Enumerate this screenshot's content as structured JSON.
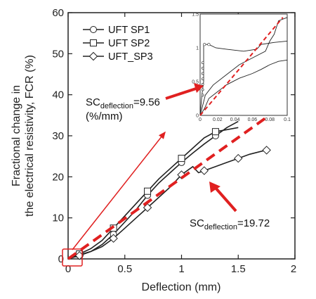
{
  "chart_data": {
    "type": "line",
    "xlabel": "Deflection  (mm)",
    "ylabel_line1": "Fractional change in",
    "ylabel_line2": "the electrical resistivity, FCR (%)",
    "xlim": [
      0,
      2
    ],
    "ylim": [
      0,
      60
    ],
    "x_ticks": [
      "0",
      "0.5",
      "1",
      "1.5",
      "2"
    ],
    "x_tick_values": [
      0,
      0.5,
      1,
      1.5,
      2
    ],
    "y_ticks": [
      "0",
      "10",
      "20",
      "30",
      "40",
      "50",
      "60"
    ],
    "y_tick_values": [
      0,
      10,
      20,
      30,
      40,
      50,
      60
    ],
    "legend_position": "top-left",
    "series": [
      {
        "name": "UFT  SP1",
        "marker": "circle",
        "x": [
          0,
          0.1,
          0.2,
          0.3,
          0.4,
          0.5,
          0.6,
          0.7,
          0.8,
          0.9,
          1.0,
          1.1,
          1.2,
          1.3,
          1.4,
          1.5
        ],
        "y": [
          0,
          1.0,
          1.8,
          3.5,
          6.0,
          9.0,
          12.0,
          15.5,
          18.5,
          21.0,
          23.5,
          25.8,
          28.0,
          30.0,
          32.0,
          33.5
        ]
      },
      {
        "name": "UFT  SP2",
        "marker": "square",
        "x": [
          0,
          0.1,
          0.2,
          0.3,
          0.4,
          0.5,
          0.6,
          0.7,
          0.8,
          0.9,
          1.0,
          1.1,
          1.2,
          1.3,
          1.4,
          1.5
        ],
        "y": [
          0,
          1.2,
          2.5,
          4.5,
          7.5,
          10.5,
          13.5,
          16.5,
          19.5,
          22.0,
          24.5,
          27.0,
          29.5,
          31.0,
          31.5,
          32.0
        ]
      },
      {
        "name": "UFT_SP3",
        "marker": "diamond",
        "x": [
          0,
          0.1,
          0.2,
          0.3,
          0.4,
          0.5,
          0.6,
          0.7,
          0.8,
          0.9,
          1.0,
          1.1,
          1.15,
          1.2,
          1.3,
          1.4,
          1.5,
          1.6,
          1.7,
          1.75
        ],
        "y": [
          0,
          0.8,
          1.8,
          3.0,
          5.0,
          7.5,
          10.0,
          12.5,
          15.0,
          17.5,
          20.5,
          22.5,
          21.0,
          21.5,
          22.5,
          23.5,
          24.5,
          25.5,
          26.2,
          26.5
        ]
      }
    ],
    "fit_line": {
      "x": [
        0,
        1.75
      ],
      "y": [
        0,
        34.5
      ],
      "color": "#e02020"
    },
    "annotations": [
      {
        "text_main": "SC",
        "text_sub": "deflection",
        "text_value": "=9.56",
        "text_line2": "(%/mm)"
      },
      {
        "text_main": "SC",
        "text_sub": "deflection",
        "text_value": "=19.72"
      }
    ],
    "inset": {
      "xlim": [
        0,
        0.1
      ],
      "ylim": [
        0,
        1.5
      ],
      "x_ticks": [
        "0",
        "0.02",
        "0.04",
        "0.06",
        "0.08",
        "0.1"
      ],
      "y_ticks": [
        "0",
        "0.5",
        "1",
        "1.5"
      ],
      "fit_line": {
        "x": [
          0,
          0.095
        ],
        "y": [
          0,
          1.45
        ]
      }
    },
    "colors": {
      "series": "#222222",
      "fit": "#e02020",
      "arrow": "#e02020"
    }
  }
}
